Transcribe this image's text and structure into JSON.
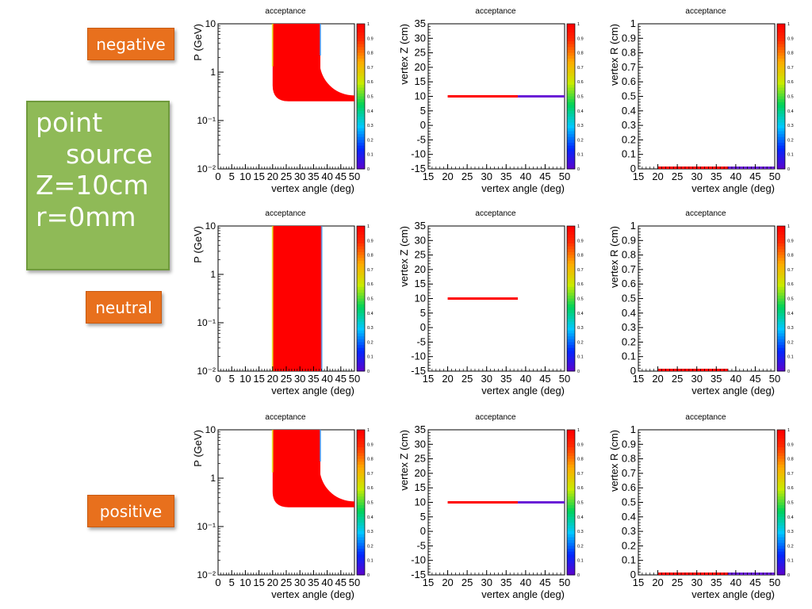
{
  "labels": {
    "negative": "negative",
    "neutral": "neutral",
    "positive": "positive"
  },
  "info": {
    "line1": "point",
    "line2": "source",
    "line3": "Z=10cm",
    "line4": "r=0mm"
  },
  "colors": {
    "label_bg": "#e8701d",
    "info_bg": "#8fba57",
    "acceptance_full": "#ff0000",
    "acceptance_half": "#6a1fd6"
  },
  "colorbar": {
    "ticks": [
      "1",
      "0.9",
      "0.8",
      "0.7",
      "0.6",
      "0.5",
      "0.4",
      "0.3",
      "0.2",
      "0.1",
      "0"
    ]
  },
  "chart_data": [
    {
      "row": "negative",
      "type": "heatmap",
      "variant": "p",
      "title": "acceptance",
      "xlabel": "vertex angle (deg)",
      "ylabel": "P (GeV)",
      "xlim": [
        0,
        50
      ],
      "ylim": [
        0.01,
        10
      ],
      "yscale": "log",
      "xticks": [
        "0",
        "5",
        "10",
        "15",
        "20",
        "25",
        "30",
        "35",
        "40",
        "45",
        "50"
      ],
      "yticks": [
        "10",
        "1",
        "10⁻¹",
        "10⁻²"
      ],
      "region": {
        "angle_min": 20,
        "angle_max": 37.5,
        "p_min": 0.25,
        "p_max": 10,
        "tail_to": 50,
        "tail_p": 0.25,
        "value": 1.0
      }
    },
    {
      "row": "negative",
      "type": "heatmap",
      "variant": "z",
      "title": "acceptance",
      "xlabel": "vertex angle (deg)",
      "ylabel": "vertex Z (cm)",
      "xlim": [
        15,
        50
      ],
      "ylim": [
        -15,
        35
      ],
      "xticks": [
        "15",
        "20",
        "25",
        "30",
        "35",
        "40",
        "45",
        "50"
      ],
      "yticks": [
        "35",
        "30",
        "25",
        "20",
        "15",
        "10",
        "5",
        "0",
        "-5",
        "-10",
        "-15"
      ],
      "segments": [
        {
          "x0": 20,
          "x1": 38,
          "y": 10,
          "value": 1.0
        },
        {
          "x0": 38,
          "x1": 50,
          "y": 10,
          "value": 0.5
        }
      ]
    },
    {
      "row": "negative",
      "type": "heatmap",
      "variant": "r",
      "title": "acceptance",
      "xlabel": "vertex angle (deg)",
      "ylabel": "vertex R (cm)",
      "xlim": [
        15,
        50
      ],
      "ylim": [
        0,
        1
      ],
      "xticks": [
        "15",
        "20",
        "25",
        "30",
        "35",
        "40",
        "45",
        "50"
      ],
      "yticks": [
        "1",
        "0.9",
        "0.8",
        "0.7",
        "0.6",
        "0.5",
        "0.4",
        "0.3",
        "0.2",
        "0.1",
        "0"
      ],
      "segments": [
        {
          "x0": 20,
          "x1": 38,
          "y": 0,
          "value": 1.0
        },
        {
          "x0": 38,
          "x1": 50,
          "y": 0,
          "value": 0.5
        }
      ]
    },
    {
      "row": "neutral",
      "type": "heatmap",
      "variant": "p",
      "title": "acceptance",
      "xlabel": "vertex angle (deg)",
      "ylabel": "P (GeV)",
      "xlim": [
        0,
        50
      ],
      "ylim": [
        0.01,
        10
      ],
      "yscale": "log",
      "xticks": [
        "0",
        "5",
        "10",
        "15",
        "20",
        "25",
        "30",
        "35",
        "40",
        "45",
        "50"
      ],
      "yticks": [
        "10",
        "1",
        "10⁻¹",
        "10⁻²"
      ],
      "region": {
        "angle_min": 20,
        "angle_max": 38,
        "p_min": 0.01,
        "p_max": 10,
        "value": 1.0
      }
    },
    {
      "row": "neutral",
      "type": "heatmap",
      "variant": "z",
      "title": "acceptance",
      "xlabel": "vertex angle (deg)",
      "ylabel": "vertex Z (cm)",
      "xlim": [
        15,
        50
      ],
      "ylim": [
        -15,
        35
      ],
      "xticks": [
        "15",
        "20",
        "25",
        "30",
        "35",
        "40",
        "45",
        "50"
      ],
      "yticks": [
        "35",
        "30",
        "25",
        "20",
        "15",
        "10",
        "5",
        "0",
        "-5",
        "-10",
        "-15"
      ],
      "segments": [
        {
          "x0": 20,
          "x1": 38,
          "y": 10,
          "value": 1.0
        }
      ]
    },
    {
      "row": "neutral",
      "type": "heatmap",
      "variant": "r",
      "title": "acceptance",
      "xlabel": "vertex angle (deg)",
      "ylabel": "vertex R (cm)",
      "xlim": [
        15,
        50
      ],
      "ylim": [
        0,
        1
      ],
      "xticks": [
        "15",
        "20",
        "25",
        "30",
        "35",
        "40",
        "45",
        "50"
      ],
      "yticks": [
        "1",
        "0.9",
        "0.8",
        "0.7",
        "0.6",
        "0.5",
        "0.4",
        "0.3",
        "0.2",
        "0.1",
        "0"
      ],
      "segments": [
        {
          "x0": 20,
          "x1": 38,
          "y": 0,
          "value": 1.0
        }
      ]
    },
    {
      "row": "positive",
      "type": "heatmap",
      "variant": "p",
      "title": "acceptance",
      "xlabel": "vertex angle (deg)",
      "ylabel": "P (GeV)",
      "xlim": [
        0,
        50
      ],
      "ylim": [
        0.01,
        10
      ],
      "yscale": "log",
      "xticks": [
        "0",
        "5",
        "10",
        "15",
        "20",
        "25",
        "30",
        "35",
        "40",
        "45",
        "50"
      ],
      "yticks": [
        "10",
        "1",
        "10⁻¹",
        "10⁻²"
      ],
      "region": {
        "angle_min": 20,
        "angle_max": 37.5,
        "p_min": 0.25,
        "p_max": 10,
        "tail_to": 50,
        "tail_p": 0.25,
        "value": 1.0
      }
    },
    {
      "row": "positive",
      "type": "heatmap",
      "variant": "z",
      "title": "acceptance",
      "xlabel": "vertex angle (deg)",
      "ylabel": "vertex Z (cm)",
      "xlim": [
        15,
        50
      ],
      "ylim": [
        -15,
        35
      ],
      "xticks": [
        "15",
        "20",
        "25",
        "30",
        "35",
        "40",
        "45",
        "50"
      ],
      "yticks": [
        "35",
        "30",
        "25",
        "20",
        "15",
        "10",
        "5",
        "0",
        "-5",
        "-10",
        "-15"
      ],
      "segments": [
        {
          "x0": 20,
          "x1": 38,
          "y": 10,
          "value": 1.0
        },
        {
          "x0": 38,
          "x1": 50,
          "y": 10,
          "value": 0.5
        }
      ]
    },
    {
      "row": "positive",
      "type": "heatmap",
      "variant": "r",
      "title": "acceptance",
      "xlabel": "vertex angle (deg)",
      "ylabel": "vertex R (cm)",
      "xlim": [
        15,
        50
      ],
      "ylim": [
        0,
        1
      ],
      "xticks": [
        "15",
        "20",
        "25",
        "30",
        "35",
        "40",
        "45",
        "50"
      ],
      "yticks": [
        "1",
        "0.9",
        "0.8",
        "0.7",
        "0.6",
        "0.5",
        "0.4",
        "0.3",
        "0.2",
        "0.1",
        "0"
      ],
      "segments": [
        {
          "x0": 20,
          "x1": 38,
          "y": 0,
          "value": 1.0
        },
        {
          "x0": 38,
          "x1": 50,
          "y": 0,
          "value": 0.5
        }
      ]
    }
  ]
}
